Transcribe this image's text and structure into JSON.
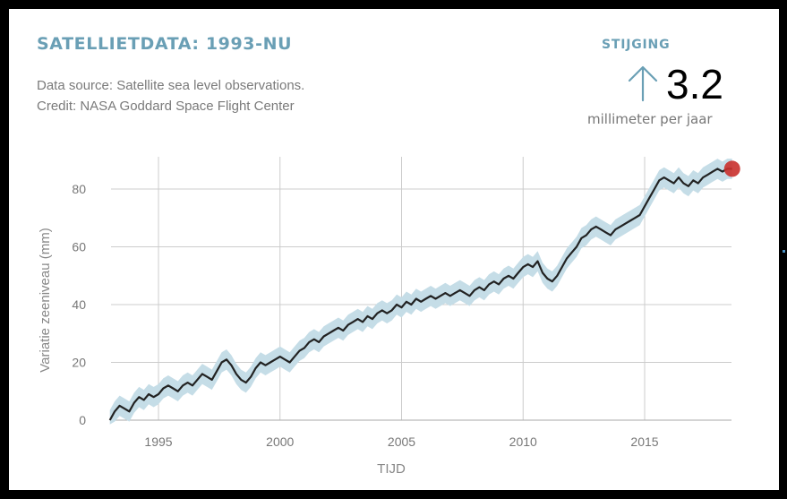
{
  "header": {
    "title": "SATELLIETDATA: 1993-NU",
    "source_line": "Data source: Satellite sea level observations.",
    "credit_line": "Credit: NASA Goddard Space Flight Center"
  },
  "rate": {
    "label": "STIJGING",
    "value": "3.2",
    "unit": "millimeter per jaar",
    "arrow_icon": "arrow-up-icon"
  },
  "colors": {
    "accent": "#6a9fb5",
    "line": "#222222",
    "band": "#c5dde7",
    "marker": "#c9302c",
    "grid": "#cccccc"
  },
  "chart_data": {
    "type": "line",
    "xlabel": "TIJD",
    "ylabel": "Variatie zeeniveau (mm)",
    "xlim": [
      1993.0,
      2018.6
    ],
    "ylim": [
      0,
      88
    ],
    "x_ticks": [
      1995,
      2000,
      2005,
      2010,
      2015
    ],
    "y_ticks": [
      0,
      20,
      40,
      60,
      80
    ],
    "grid": true,
    "uncertainty_band": 3.5,
    "series": [
      {
        "x": [
          1993.0,
          1993.2,
          1993.4,
          1993.6,
          1993.8,
          1994.0,
          1994.2,
          1994.4,
          1994.6,
          1994.8,
          1995.0,
          1995.2,
          1995.4,
          1995.6,
          1995.8,
          1996.0,
          1996.2,
          1996.4,
          1996.6,
          1996.8,
          1997.0,
          1997.2,
          1997.4,
          1997.6,
          1997.8,
          1998.0,
          1998.2,
          1998.4,
          1998.6,
          1998.8,
          1999.0,
          1999.2,
          1999.4,
          1999.6,
          1999.8,
          2000.0,
          2000.2,
          2000.4,
          2000.6,
          2000.8,
          2001.0,
          2001.2,
          2001.4,
          2001.6,
          2001.8,
          2002.0,
          2002.2,
          2002.4,
          2002.6,
          2002.8,
          2003.0,
          2003.2,
          2003.4,
          2003.6,
          2003.8,
          2004.0,
          2004.2,
          2004.4,
          2004.6,
          2004.8,
          2005.0,
          2005.2,
          2005.4,
          2005.6,
          2005.8,
          2006.0,
          2006.2,
          2006.4,
          2006.6,
          2006.8,
          2007.0,
          2007.2,
          2007.4,
          2007.6,
          2007.8,
          2008.0,
          2008.2,
          2008.4,
          2008.6,
          2008.8,
          2009.0,
          2009.2,
          2009.4,
          2009.6,
          2009.8,
          2010.0,
          2010.2,
          2010.4,
          2010.6,
          2010.8,
          2011.0,
          2011.2,
          2011.4,
          2011.6,
          2011.8,
          2012.0,
          2012.2,
          2012.4,
          2012.6,
          2012.8,
          2013.0,
          2013.2,
          2013.4,
          2013.6,
          2013.8,
          2014.0,
          2014.2,
          2014.4,
          2014.6,
          2014.8,
          2015.0,
          2015.2,
          2015.4,
          2015.6,
          2015.8,
          2016.0,
          2016.2,
          2016.4,
          2016.6,
          2016.8,
          2017.0,
          2017.2,
          2017.4,
          2017.6,
          2017.8,
          2018.0,
          2018.2,
          2018.4,
          2018.6
        ],
        "y": [
          0,
          3,
          5,
          4,
          3,
          6,
          8,
          7,
          9,
          8,
          9,
          11,
          12,
          11,
          10,
          12,
          13,
          12,
          14,
          16,
          15,
          14,
          17,
          20,
          21,
          19,
          16,
          14,
          13,
          15,
          18,
          20,
          19,
          20,
          21,
          22,
          21,
          20,
          22,
          24,
          25,
          27,
          28,
          27,
          29,
          30,
          31,
          32,
          31,
          33,
          34,
          35,
          34,
          36,
          35,
          37,
          38,
          37,
          38,
          40,
          39,
          41,
          40,
          42,
          41,
          42,
          43,
          42,
          43,
          44,
          43,
          44,
          45,
          44,
          43,
          45,
          46,
          45,
          47,
          48,
          47,
          49,
          50,
          49,
          51,
          53,
          54,
          53,
          55,
          51,
          49,
          48,
          50,
          53,
          56,
          58,
          60,
          63,
          64,
          66,
          67,
          66,
          65,
          64,
          66,
          67,
          68,
          69,
          70,
          71,
          74,
          77,
          80,
          83,
          84,
          83,
          82,
          84,
          82,
          81,
          83,
          82,
          84,
          85,
          86,
          87,
          86,
          87,
          87
        ]
      }
    ],
    "end_marker": {
      "x": 2018.6,
      "y": 87
    }
  }
}
